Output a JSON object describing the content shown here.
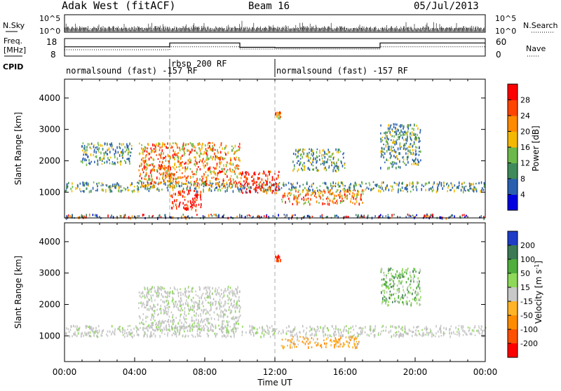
{
  "header": {
    "station": "Adak West (fitACF)",
    "beam": "Beam 16",
    "date": "05/Jul/2013"
  },
  "chart_data": [
    {
      "type": "line",
      "panel": "noise",
      "ylabel_left": "N.Sky",
      "ylabel_right": "N.Search",
      "left_ticks": [
        "10^5",
        "10^0"
      ],
      "right_ticks": [
        "10^5",
        "10^0"
      ],
      "ylim": [
        0,
        5
      ],
      "yscale": "log10",
      "x_range_hours": [
        0,
        24
      ]
    },
    {
      "type": "line",
      "panel": "frequency_nave",
      "ylabel_left_lines": [
        "Freq.",
        "[MHz]"
      ],
      "ylabel_right": "Nave",
      "left_ticks": [
        "18",
        "8"
      ],
      "right_ticks": [
        "60",
        "0"
      ],
      "left_ylim": [
        8,
        18
      ],
      "right_ylim": [
        0,
        60
      ],
      "series": [
        {
          "style": "solid",
          "points": [
            [
              0,
              13.3
            ],
            [
              6,
              13.3
            ],
            [
              6,
              15.5
            ],
            [
              10,
              15.5
            ],
            [
              10,
              13.0
            ],
            [
              12,
              13.0
            ],
            [
              12,
              12.8
            ],
            [
              18,
              12.8
            ],
            [
              18,
              15.5
            ],
            [
              24,
              15.5
            ]
          ]
        },
        {
          "style": "dotted",
          "points": [
            [
              0,
              11.6
            ],
            [
              6,
              11.6
            ],
            [
              6,
              13.3
            ],
            [
              10,
              13.3
            ],
            [
              10,
              12.0
            ],
            [
              18,
              12.0
            ],
            [
              18,
              13.3
            ],
            [
              24,
              13.3
            ]
          ]
        }
      ]
    },
    {
      "type": "table",
      "panel": "cpid",
      "label": "CPID",
      "segments": [
        {
          "start": 0,
          "end": 6,
          "text": "normalsound (fast) -157 RF"
        },
        {
          "start": 6,
          "end": 12,
          "text": "rbsp 200 RF"
        },
        {
          "start": 12,
          "end": 24,
          "text": "normalsound (fast) -157 RF"
        }
      ]
    },
    {
      "type": "heatmap",
      "panel": "power",
      "ylabel": "Slant Range [km]",
      "yticks": [
        1000,
        2000,
        3000,
        4000
      ],
      "ylim": [
        180,
        4600
      ],
      "colorbar": {
        "label": "Power [dB]",
        "ticks": [
          "4",
          "8",
          "12",
          "16",
          "20",
          "24",
          "28"
        ],
        "range": [
          0,
          32
        ],
        "colors": [
          "#0000e0",
          "#2a5fb0",
          "#3f8a5a",
          "#6db84a",
          "#f5b800",
          "#ff8a00",
          "#ff4500",
          "#ff0000"
        ]
      },
      "features_hours_km": [
        {
          "x": [
            0.0,
            24.0
          ],
          "y": [
            200,
            320
          ],
          "level": "low"
        },
        {
          "x": [
            0.0,
            24.0
          ],
          "y": [
            1050,
            1350
          ],
          "level": "moderate"
        },
        {
          "x": [
            0.9,
            3.8
          ],
          "y": [
            1900,
            2600
          ],
          "level": "moderate"
        },
        {
          "x": [
            4.2,
            10.0
          ],
          "y": [
            1200,
            2600
          ],
          "level": "high"
        },
        {
          "x": [
            6.0,
            7.8
          ],
          "y": [
            450,
            1100
          ],
          "level": "very high"
        },
        {
          "x": [
            10.0,
            12.2
          ],
          "y": [
            1000,
            1700
          ],
          "level": "very high"
        },
        {
          "x": [
            12.3,
            17.0
          ],
          "y": [
            650,
            1100
          ],
          "level": "high"
        },
        {
          "x": [
            13.0,
            16.0
          ],
          "y": [
            1700,
            2400
          ],
          "level": "moderate"
        },
        {
          "x": [
            18.0,
            20.3
          ],
          "y": [
            1800,
            3200
          ],
          "level": "moderate"
        },
        {
          "x": [
            12.0,
            12.3
          ],
          "y": [
            3400,
            3600
          ],
          "level": "high"
        }
      ]
    },
    {
      "type": "heatmap",
      "panel": "velocity",
      "ylabel": "Slant Range [km]",
      "yticks": [
        1000,
        2000,
        3000,
        4000
      ],
      "ylim": [
        180,
        4600
      ],
      "xticks": [
        "00:00",
        "04:00",
        "08:00",
        "12:00",
        "16:00",
        "20:00",
        "00:00"
      ],
      "xlabel": "Time UT",
      "colorbar": {
        "label": "Velocity [m s^-1]",
        "ticks": [
          "200",
          "100",
          "50",
          "15",
          "-15",
          "-50",
          "-100",
          "-200"
        ],
        "range": [
          -250,
          250
        ],
        "colors": [
          "#1e3cc8",
          "#3c7a55",
          "#4fae3c",
          "#8ed85a",
          "#c8c8c8",
          "#ffb428",
          "#ff8c00",
          "#ff5000",
          "#ff0000"
        ]
      },
      "features_hours_km": [
        {
          "x": [
            0.0,
            24.0
          ],
          "y": [
            1000,
            1350
          ],
          "velocity": "near zero"
        },
        {
          "x": [
            4.2,
            10.0
          ],
          "y": [
            1200,
            2600
          ],
          "velocity": "near zero"
        },
        {
          "x": [
            12.3,
            16.8
          ],
          "y": [
            650,
            1000
          ],
          "velocity": "-50 to -100"
        },
        {
          "x": [
            18.0,
            20.3
          ],
          "y": [
            2000,
            3200
          ],
          "velocity": "+15 to +100"
        },
        {
          "x": [
            12.0,
            12.3
          ],
          "y": [
            3400,
            3600
          ],
          "velocity": "-200"
        }
      ]
    }
  ]
}
